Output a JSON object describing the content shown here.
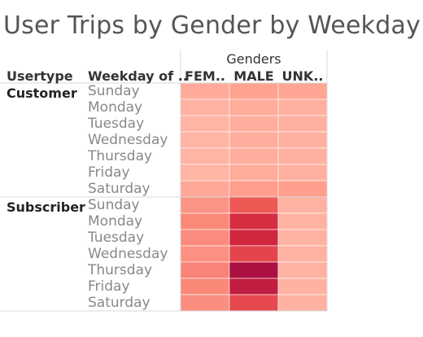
{
  "title": "User Trips by Gender by Weekday",
  "headers": {
    "usertype": "Usertype",
    "weekday": "Weekday of ..",
    "column_group": "Genders"
  },
  "chart_data": {
    "type": "heatmap",
    "title": "User Trips by Gender by Weekday",
    "column_group_label": "Genders",
    "columns": [
      "FEM..",
      "MALE",
      "UNK.."
    ],
    "row_groups": [
      {
        "usertype": "Customer",
        "days": [
          "Sunday",
          "Monday",
          "Tuesday",
          "Wednesday",
          "Thursday",
          "Friday",
          "Saturday"
        ],
        "values": [
          [
            0.24,
            0.28,
            0.27
          ],
          [
            0.2,
            0.23,
            0.21
          ],
          [
            0.19,
            0.22,
            0.21
          ],
          [
            0.19,
            0.22,
            0.21
          ],
          [
            0.19,
            0.22,
            0.21
          ],
          [
            0.19,
            0.23,
            0.21
          ],
          [
            0.25,
            0.3,
            0.3
          ]
        ]
      },
      {
        "usertype": "Subscriber",
        "days": [
          "Sunday",
          "Monday",
          "Tuesday",
          "Wednesday",
          "Thursday",
          "Friday",
          "Saturday"
        ],
        "values": [
          [
            0.34,
            0.56,
            0.2
          ],
          [
            0.38,
            0.78,
            0.2
          ],
          [
            0.37,
            0.82,
            0.2
          ],
          [
            0.35,
            0.66,
            0.2
          ],
          [
            0.4,
            1.0,
            0.2
          ],
          [
            0.38,
            0.9,
            0.2
          ],
          [
            0.36,
            0.64,
            0.2
          ]
        ]
      }
    ],
    "value_scale": "relative trip count, 0 (light) to 1 (dark)",
    "color_low": "#ffd7ce",
    "color_high": "#ab1040"
  },
  "colors": {
    "grid_line": "#d9d9d9",
    "group_separator": "#e3e3e3",
    "cell_separator": "#ffffff"
  }
}
